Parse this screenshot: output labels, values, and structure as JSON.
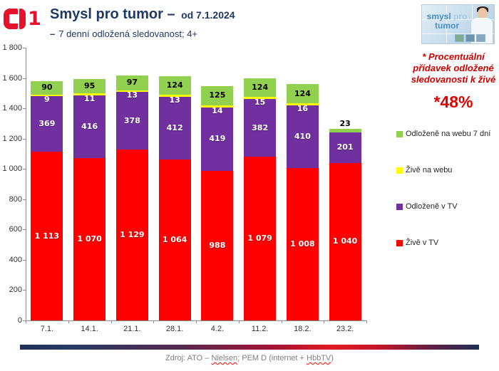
{
  "colors": {
    "brand_red": "#E8112D",
    "title_navy": "#1F3864",
    "annotation_red": "#D00000",
    "axis_gray": "#8C8C8C",
    "source_gray": "#7F7F7F"
  },
  "header": {
    "channel_number": "1",
    "title": "Smysl pro tumor –",
    "title_suffix": "od 7.1.2024",
    "subtitle_dash": "–",
    "subtitle": "7 denní odložená sledovanost; 4+"
  },
  "promo": {
    "word1": "smysl",
    "word2": "pro",
    "word3": "tumor"
  },
  "annotation": {
    "note": "* Procentuální přídavek odložené sledovanosti k živé",
    "value": "*48%"
  },
  "chart_data": {
    "type": "bar",
    "stacked": true,
    "title": "",
    "categories": [
      "7.1.",
      "14.1.",
      "21.1.",
      "28.1.",
      "4.2.",
      "11.2.",
      "18.2.",
      "23.2."
    ],
    "series": [
      {
        "name": "Živě v TV",
        "color": "#FF0000",
        "label_color": "#FFFFFF",
        "values": [
          1113,
          1070,
          1129,
          1064,
          988,
          1079,
          1008,
          1040
        ]
      },
      {
        "name": "Odloženě v TV",
        "color": "#7030A0",
        "label_color": "#FFFFFF",
        "values": [
          369,
          416,
          378,
          412,
          419,
          382,
          410,
          201
        ]
      },
      {
        "name": "Živě na webu",
        "color": "#FFFF00",
        "label_color": "#FFFFFF",
        "values": [
          9,
          11,
          13,
          13,
          14,
          15,
          16,
          0
        ]
      },
      {
        "name": "Odloženě na webu 7 dní",
        "color": "#92D050",
        "label_color": "#000000",
        "values": [
          90,
          95,
          97,
          124,
          125,
          124,
          124,
          23
        ]
      }
    ],
    "ylim": [
      0,
      1800
    ],
    "ytick_step": 200,
    "grid": false,
    "legend_position": "right"
  },
  "footer": {
    "source_parts": [
      {
        "text": "Zdroj: ATO – "
      },
      {
        "text": "Nielsen",
        "spellcheck_underline": true
      },
      {
        "text": "; PEM D (internet + "
      },
      {
        "text": "HbbTV",
        "spellcheck_underline": true
      },
      {
        "text": ")"
      }
    ]
  }
}
